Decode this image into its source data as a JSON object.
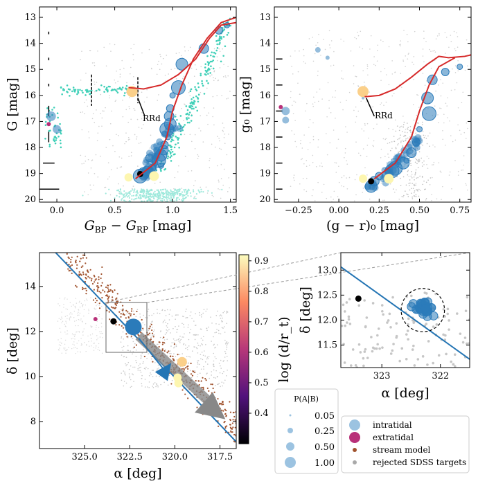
{
  "panels": {
    "cmd_gaia": {
      "xlabel": "G_BP − G_RP [mag]",
      "ylabel": "G [mag]",
      "xlim": [
        -0.15,
        1.55
      ],
      "ylim": [
        20.1,
        12.6
      ],
      "xticks": [
        "0.0",
        "0.5",
        "1.0",
        "1.5"
      ],
      "yticks": [
        "13",
        "14",
        "15",
        "16",
        "17",
        "18",
        "19",
        "20"
      ],
      "rrd_label": "RRd"
    },
    "cmd_sdss": {
      "xlabel": "(g − r)₀ [mag]",
      "ylabel": "g₀ [mag]",
      "xlim": [
        -0.4,
        0.82
      ],
      "ylim": [
        20.1,
        12.6
      ],
      "xticks": [
        "−0.25",
        "0.00",
        "0.25",
        "0.50",
        "0.75"
      ],
      "yticks": [
        "13",
        "14",
        "15",
        "16",
        "17",
        "18",
        "19",
        "20"
      ],
      "rrd_label": "RRd"
    },
    "sky": {
      "xlabel": "α [deg]",
      "ylabel": "δ [deg]",
      "xlim": [
        327.5,
        316.6
      ],
      "ylim": [
        6.8,
        15.5
      ],
      "xticks": [
        "325.0",
        "322.5",
        "320.0",
        "317.5"
      ],
      "yticks": [
        "8",
        "10",
        "12",
        "14"
      ]
    },
    "zoom": {
      "xlabel": "α [deg]",
      "ylabel": "δ [deg]",
      "xlim": [
        323.7,
        321.5
      ],
      "ylim": [
        11.05,
        13.35
      ],
      "xticks": [
        "323",
        "322"
      ],
      "yticks": [
        "11.5",
        "12.0",
        "12.5",
        "13.0"
      ]
    }
  },
  "colorbar": {
    "label": "log (d/r_t)",
    "range": [
      0.3,
      0.92
    ],
    "ticks": [
      "0.4",
      "0.5",
      "0.6",
      "0.7",
      "0.8",
      "0.9"
    ]
  },
  "legend_size": {
    "title": "P(A|B)",
    "entries": [
      "0.05",
      "0.25",
      "0.50",
      "1.00"
    ]
  },
  "legend_types": {
    "entries": [
      "intratidal",
      "extratidal",
      "stream model",
      "rejected SDSS targets"
    ]
  },
  "colors": {
    "intratidal": "#2b7bba",
    "extratidal": "#b83179",
    "stream_model": "#a0522d",
    "rejected": "#a9a9a9",
    "gaia_field": "#40d0b8",
    "isochrone": "#d62a2a",
    "orbit": "#2475b4"
  },
  "chart_data": [
    {
      "type": "scatter",
      "title": "Gaia CMD",
      "xlabel": "G_BP − G_RP [mag]",
      "ylabel": "G [mag]",
      "series": [
        {
          "name": "intratidal",
          "x": [
            1.47,
            1.4,
            1.27,
            1.08,
            1.05,
            1.0,
            0.98,
            0.97,
            0.98,
            0.95,
            0.96,
            0.93,
            0.92,
            0.9,
            0.88,
            0.85,
            0.82,
            0.78,
            0.75,
            0.72,
            0.9,
            0.8
          ],
          "y": [
            13.3,
            13.5,
            14.2,
            14.8,
            15.7,
            16.0,
            16.5,
            16.8,
            17.1,
            17.3,
            17.6,
            17.9,
            18.1,
            18.3,
            18.5,
            18.6,
            18.8,
            18.9,
            19.0,
            19.1,
            18.7,
            18.4
          ]
        },
        {
          "name": "extratidal",
          "x": [
            -0.07
          ],
          "y": [
            17.1
          ]
        },
        {
          "name": "RRd",
          "x": [
            0.65
          ],
          "y": [
            15.85
          ]
        },
        {
          "name": "highlight",
          "x": [
            0.72
          ],
          "y": [
            19.02
          ]
        }
      ]
    },
    {
      "type": "scatter",
      "title": "SDSS CMD",
      "xlabel": "(g − r)₀ [mag]",
      "ylabel": "g₀ [mag]",
      "series": [
        {
          "name": "intratidal",
          "x": [
            0.75,
            0.66,
            0.58,
            0.55,
            0.56,
            0.5,
            0.48,
            0.45,
            0.4,
            0.35,
            0.3,
            0.25,
            0.22,
            0.2,
            0.33,
            0.42
          ],
          "y": [
            14.9,
            15.1,
            15.4,
            16.1,
            16.7,
            17.3,
            17.8,
            18.2,
            18.6,
            18.8,
            18.9,
            19.1,
            19.3,
            19.5,
            18.9,
            18.5
          ]
        },
        {
          "name": "extratidal",
          "x": [
            -0.36
          ],
          "y": [
            16.45
          ]
        },
        {
          "name": "RRd",
          "x": [
            0.15
          ],
          "y": [
            15.85
          ]
        },
        {
          "name": "highlight",
          "x": [
            0.2
          ],
          "y": [
            19.3
          ]
        }
      ]
    },
    {
      "type": "scatter",
      "title": "Sky positions",
      "xlabel": "α [deg]",
      "ylabel": "δ [deg]",
      "series": [
        {
          "name": "intratidal",
          "x": [
            322.3
          ],
          "y": [
            12.2
          ]
        },
        {
          "name": "extratidal",
          "x": [
            324.4
          ],
          "y": [
            12.55
          ]
        },
        {
          "name": "highlight",
          "x": [
            323.4
          ],
          "y": [
            12.45
          ]
        },
        {
          "name": "RRd",
          "x": [
            319.6
          ],
          "y": [
            10.65
          ]
        }
      ],
      "orbit_line": {
        "x": [
          326.6,
          316.6
        ],
        "y": [
          15.5,
          7.1
        ]
      }
    },
    {
      "type": "scatter",
      "title": "Zoom",
      "xlabel": "α [deg]",
      "ylabel": "δ [deg]",
      "series": [
        {
          "name": "intratidal",
          "x": [
            322.3
          ],
          "y": [
            12.2
          ]
        },
        {
          "name": "highlight",
          "x": [
            323.4
          ],
          "y": [
            12.43
          ]
        }
      ],
      "tidal_circle": {
        "center": [
          322.3,
          12.2
        ],
        "radius_deg": 0.37
      }
    }
  ]
}
